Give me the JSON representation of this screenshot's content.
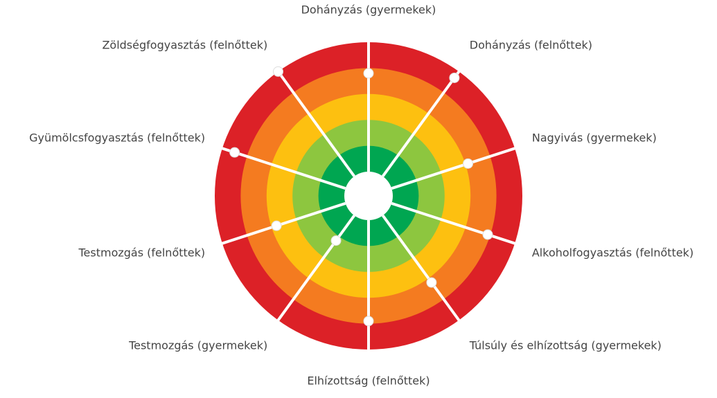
{
  "chart_data": {
    "type": "radial",
    "categories": [
      "Dohányzás (gyermekek)",
      "Dohányzás (felnőttek)",
      "Nagyivás (gyermekek)",
      "Alkoholfogyasztás (felnőttek)",
      "Túlsúly és elhízottság (gyermekek)",
      "Elhízottság (felnőttek)",
      "Testmozgás (gyermekek)",
      "Testmozgás (felnőttek)",
      "Gyümölcsfogyasztás (felnőttek)",
      "Zöldségfogyasztás (felnőttek)"
    ],
    "values": [
      3.8,
      4.7,
      3.1,
      3.9,
      3.2,
      3.9,
      1.2,
      2.8,
      4.5,
      5.0
    ],
    "ylim": [
      0,
      5
    ],
    "ring_colors": [
      "#00a651",
      "#8dc63f",
      "#fdc010",
      "#f47b20",
      "#dc2127"
    ],
    "point_color": "#ffffff"
  }
}
